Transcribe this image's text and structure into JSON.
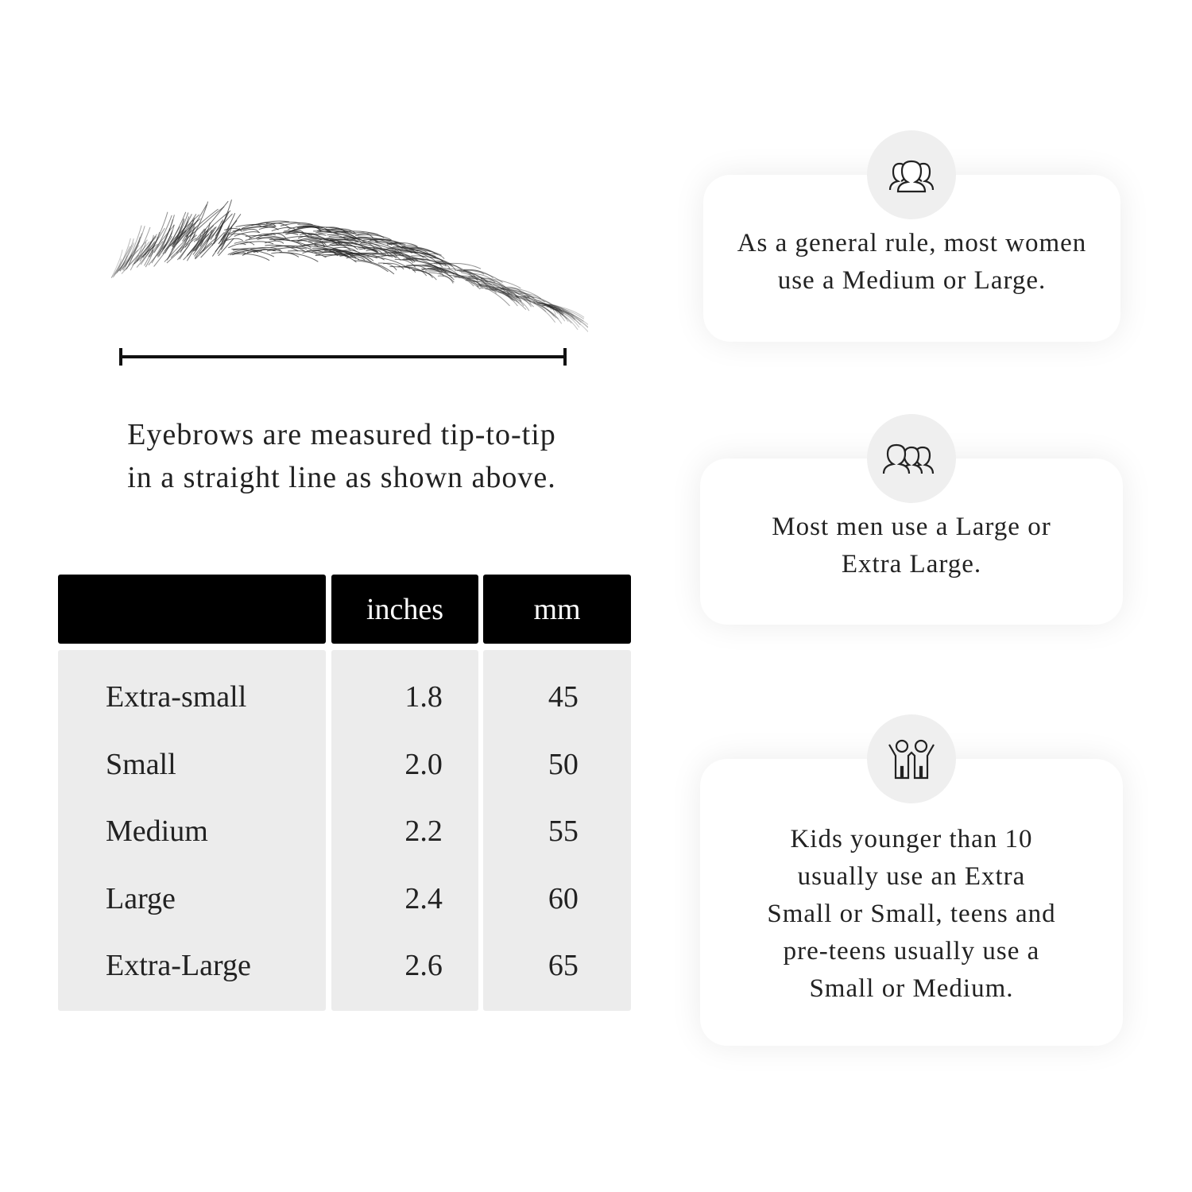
{
  "caption": {
    "line1": "Eyebrows are measured tip-to-tip",
    "line2": "in a straight line as shown above."
  },
  "table": {
    "headers": [
      "",
      "inches",
      "mm"
    ],
    "rows": [
      {
        "size": "Extra-small",
        "inches": "1.8",
        "mm": "45"
      },
      {
        "size": "Small",
        "inches": "2.0",
        "mm": "50"
      },
      {
        "size": "Medium",
        "inches": "2.2",
        "mm": "55"
      },
      {
        "size": "Large",
        "inches": "2.4",
        "mm": "60"
      },
      {
        "size": "Extra-Large",
        "inches": "2.6",
        "mm": "65"
      }
    ]
  },
  "cards": [
    {
      "icon": "women-group-icon",
      "line1": "As a general rule, most women",
      "line2": "use a Medium or Large."
    },
    {
      "icon": "men-group-icon",
      "line1": "Most men use a Large or",
      "line2": "Extra Large."
    },
    {
      "icon": "kids-icon",
      "line1": "Kids younger than 10",
      "line2": "usually use an Extra",
      "line3": "Small or Small, teens and",
      "line4": "pre-teens usually use a",
      "line5": "Small or Medium."
    }
  ],
  "colors": {
    "header_bg": "#000000",
    "body_bg": "#ececec",
    "icon_circle": "#efefef"
  }
}
